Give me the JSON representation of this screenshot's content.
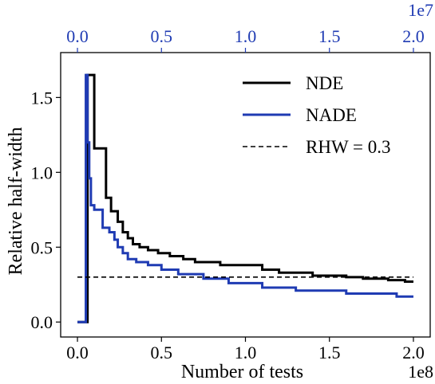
{
  "chart_data": {
    "type": "line",
    "xlabel": "Number of tests",
    "ylabel": "Relative half-width",
    "x_offset_label": "1e8",
    "top_offset_label": "1e7",
    "xlim": [
      -0.1,
      2.1
    ],
    "ylim": [
      -0.1,
      1.8
    ],
    "top_xlim": [
      -0.1,
      2.1
    ],
    "x_ticks": [
      "0.0",
      "0.5",
      "1.0",
      "1.5",
      "2.0"
    ],
    "x_tick_values": [
      0.0,
      0.5,
      1.0,
      1.5,
      2.0
    ],
    "top_ticks": [
      "0.0",
      "0.5",
      "1.0",
      "1.5",
      "2.0"
    ],
    "top_tick_values": [
      0.0,
      0.5,
      1.0,
      1.5,
      2.0
    ],
    "y_ticks": [
      "0.0",
      "0.5",
      "1.0",
      "1.5"
    ],
    "y_tick_values": [
      0.0,
      0.5,
      1.0,
      1.5
    ],
    "grid": false,
    "legend_position": "top-right",
    "series": [
      {
        "name": "NDE",
        "axis": "bottom",
        "color": "#000000",
        "linestyle": "solid",
        "x": [
          0.0,
          0.06,
          0.06,
          0.07,
          0.07,
          0.1,
          0.1,
          0.17,
          0.17,
          0.2,
          0.2,
          0.24,
          0.24,
          0.27,
          0.27,
          0.3,
          0.3,
          0.33,
          0.33,
          0.37,
          0.37,
          0.42,
          0.42,
          0.48,
          0.48,
          0.55,
          0.55,
          0.63,
          0.63,
          0.7,
          0.7,
          0.85,
          0.85,
          1.1,
          1.1,
          1.2,
          1.2,
          1.4,
          1.4,
          1.6,
          1.6,
          1.7,
          1.7,
          1.85,
          1.85,
          1.95,
          1.95,
          2.0
        ],
        "y": [
          0.0,
          0.0,
          1.65,
          1.65,
          1.65,
          1.65,
          1.16,
          1.16,
          0.83,
          0.83,
          0.74,
          0.74,
          0.67,
          0.67,
          0.6,
          0.6,
          0.56,
          0.56,
          0.52,
          0.52,
          0.5,
          0.5,
          0.48,
          0.48,
          0.46,
          0.46,
          0.44,
          0.44,
          0.42,
          0.42,
          0.4,
          0.4,
          0.38,
          0.38,
          0.35,
          0.35,
          0.33,
          0.33,
          0.31,
          0.31,
          0.3,
          0.3,
          0.29,
          0.29,
          0.28,
          0.28,
          0.27,
          0.27
        ]
      },
      {
        "name": "NADE",
        "axis": "top",
        "color": "#1f3bb3",
        "linestyle": "solid",
        "x": [
          0.0,
          0.05,
          0.05,
          0.06,
          0.06,
          0.07,
          0.07,
          0.08,
          0.08,
          0.1,
          0.1,
          0.15,
          0.15,
          0.19,
          0.19,
          0.22,
          0.22,
          0.24,
          0.24,
          0.27,
          0.27,
          0.3,
          0.3,
          0.35,
          0.35,
          0.42,
          0.42,
          0.5,
          0.5,
          0.6,
          0.6,
          0.75,
          0.75,
          0.9,
          0.9,
          1.1,
          1.1,
          1.3,
          1.3,
          1.6,
          1.6,
          1.9,
          1.9,
          2.0
        ],
        "y": [
          0.0,
          0.0,
          1.65,
          1.65,
          1.2,
          1.2,
          0.96,
          0.96,
          0.78,
          0.78,
          0.75,
          0.75,
          0.63,
          0.63,
          0.6,
          0.6,
          0.55,
          0.55,
          0.5,
          0.5,
          0.46,
          0.46,
          0.42,
          0.42,
          0.4,
          0.4,
          0.38,
          0.38,
          0.35,
          0.35,
          0.32,
          0.32,
          0.29,
          0.29,
          0.26,
          0.26,
          0.23,
          0.23,
          0.21,
          0.21,
          0.19,
          0.19,
          0.17,
          0.17
        ]
      },
      {
        "name": "RHW = 0.3",
        "axis": "bottom",
        "color": "#000000",
        "linestyle": "dashed",
        "x": [
          0.0,
          2.0
        ],
        "y": [
          0.3,
          0.3
        ]
      }
    ]
  }
}
